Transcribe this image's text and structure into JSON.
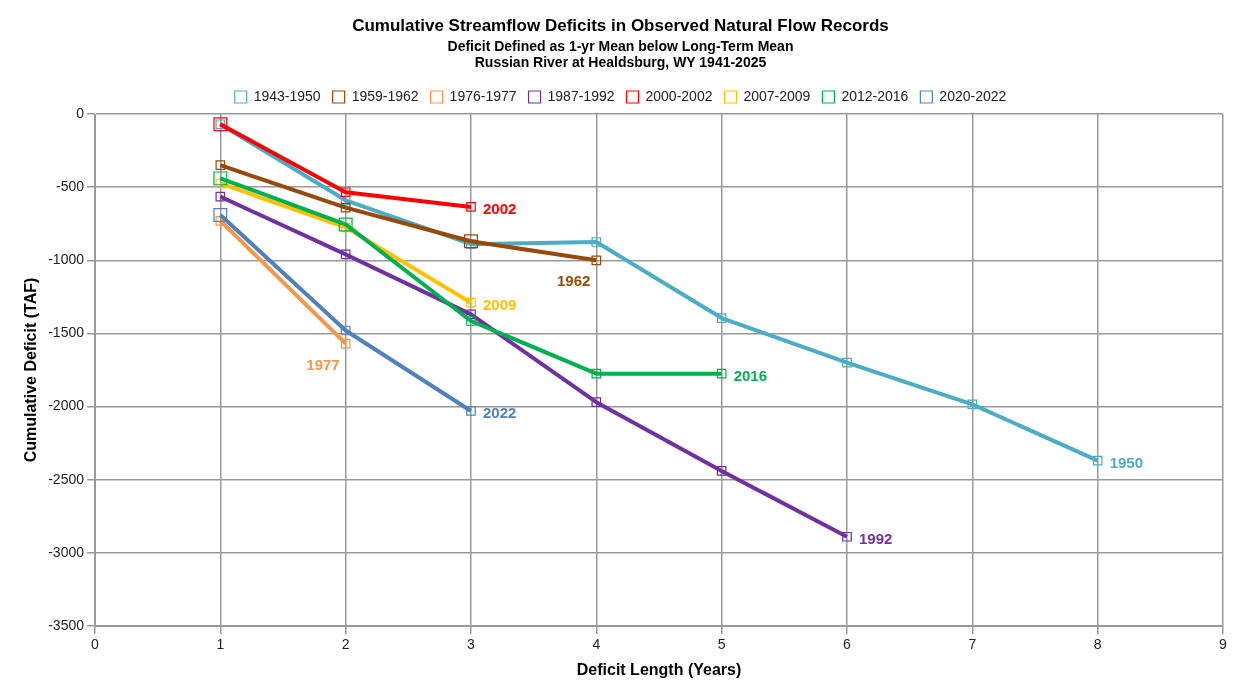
{
  "chart_data": {
    "type": "line",
    "title": "Cumulative Streamflow Deficits in Observed Natural Flow Records",
    "subtitle": "Deficit Defined as 1-yr Mean below Long-Term Mean\nRussian River at Healdsburg, WY 1941-2025",
    "xlabel": "Deficit Length (Years)",
    "ylabel": "Cumulative Deficit (TAF)",
    "series": [
      {
        "name": "1943-1950",
        "color": "#4bacc6",
        "x": [
          1,
          2,
          3,
          4,
          5,
          6,
          7,
          8
        ],
        "values": [
          -70,
          -590,
          -890,
          -875,
          -1395,
          -1700,
          -1985,
          -2370
        ]
      },
      {
        "name": "1959-1962",
        "color": "#984807",
        "x": [
          1,
          2,
          3,
          4
        ],
        "values": [
          -350,
          -640,
          -870,
          -1000
        ]
      },
      {
        "name": "1976-1977",
        "color": "#f79646",
        "x": [
          1,
          2
        ],
        "values": [
          -730,
          -1570
        ]
      },
      {
        "name": "1987-1992",
        "color": "#7030a0",
        "x": [
          1,
          2,
          3,
          4,
          5,
          6
        ],
        "values": [
          -565,
          -960,
          -1370,
          -1970,
          -2440,
          -2890
        ]
      },
      {
        "name": "2000-2002",
        "color": "#ff0000",
        "x": [
          1,
          2,
          3
        ],
        "values": [
          -70,
          -535,
          -635
        ]
      },
      {
        "name": "2007-2009",
        "color": "#ffc000",
        "x": [
          1,
          2,
          3
        ],
        "values": [
          -475,
          -775,
          -1290
        ]
      },
      {
        "name": "2012-2016",
        "color": "#00b050",
        "x": [
          1,
          2,
          3,
          4,
          5
        ],
        "values": [
          -440,
          -755,
          -1415,
          -1775,
          -1775
        ]
      },
      {
        "name": "2020-2022",
        "color": "#4f81bd",
        "x": [
          1,
          2,
          3
        ],
        "values": [
          -690,
          -1480,
          -2030
        ]
      }
    ],
    "xlim": [
      0,
      9
    ],
    "xticks": [
      0,
      1,
      2,
      3,
      4,
      5,
      6,
      7,
      8,
      9
    ],
    "ylim": [
      -3500,
      0
    ],
    "yticks": [
      -3500,
      -3000,
      -2500,
      -2000,
      -1500,
      -1000,
      -500,
      0
    ],
    "grid": true,
    "legend": "top",
    "marker": "square",
    "line_style": "solid",
    "annotations": [
      {
        "text": "1950",
        "x": 8,
        "y": -2370
      },
      {
        "text": "1962",
        "x": 4,
        "y": -1000
      },
      {
        "text": "1977",
        "x": 2,
        "y": -1570
      },
      {
        "text": "1992",
        "x": 6,
        "y": -2890
      },
      {
        "text": "2002",
        "x": 3,
        "y": -635
      },
      {
        "text": "2009",
        "x": 3,
        "y": -1290
      },
      {
        "text": "2016",
        "x": 5,
        "y": -1775
      },
      {
        "text": "2022",
        "x": 3,
        "y": -2030
      }
    ]
  }
}
